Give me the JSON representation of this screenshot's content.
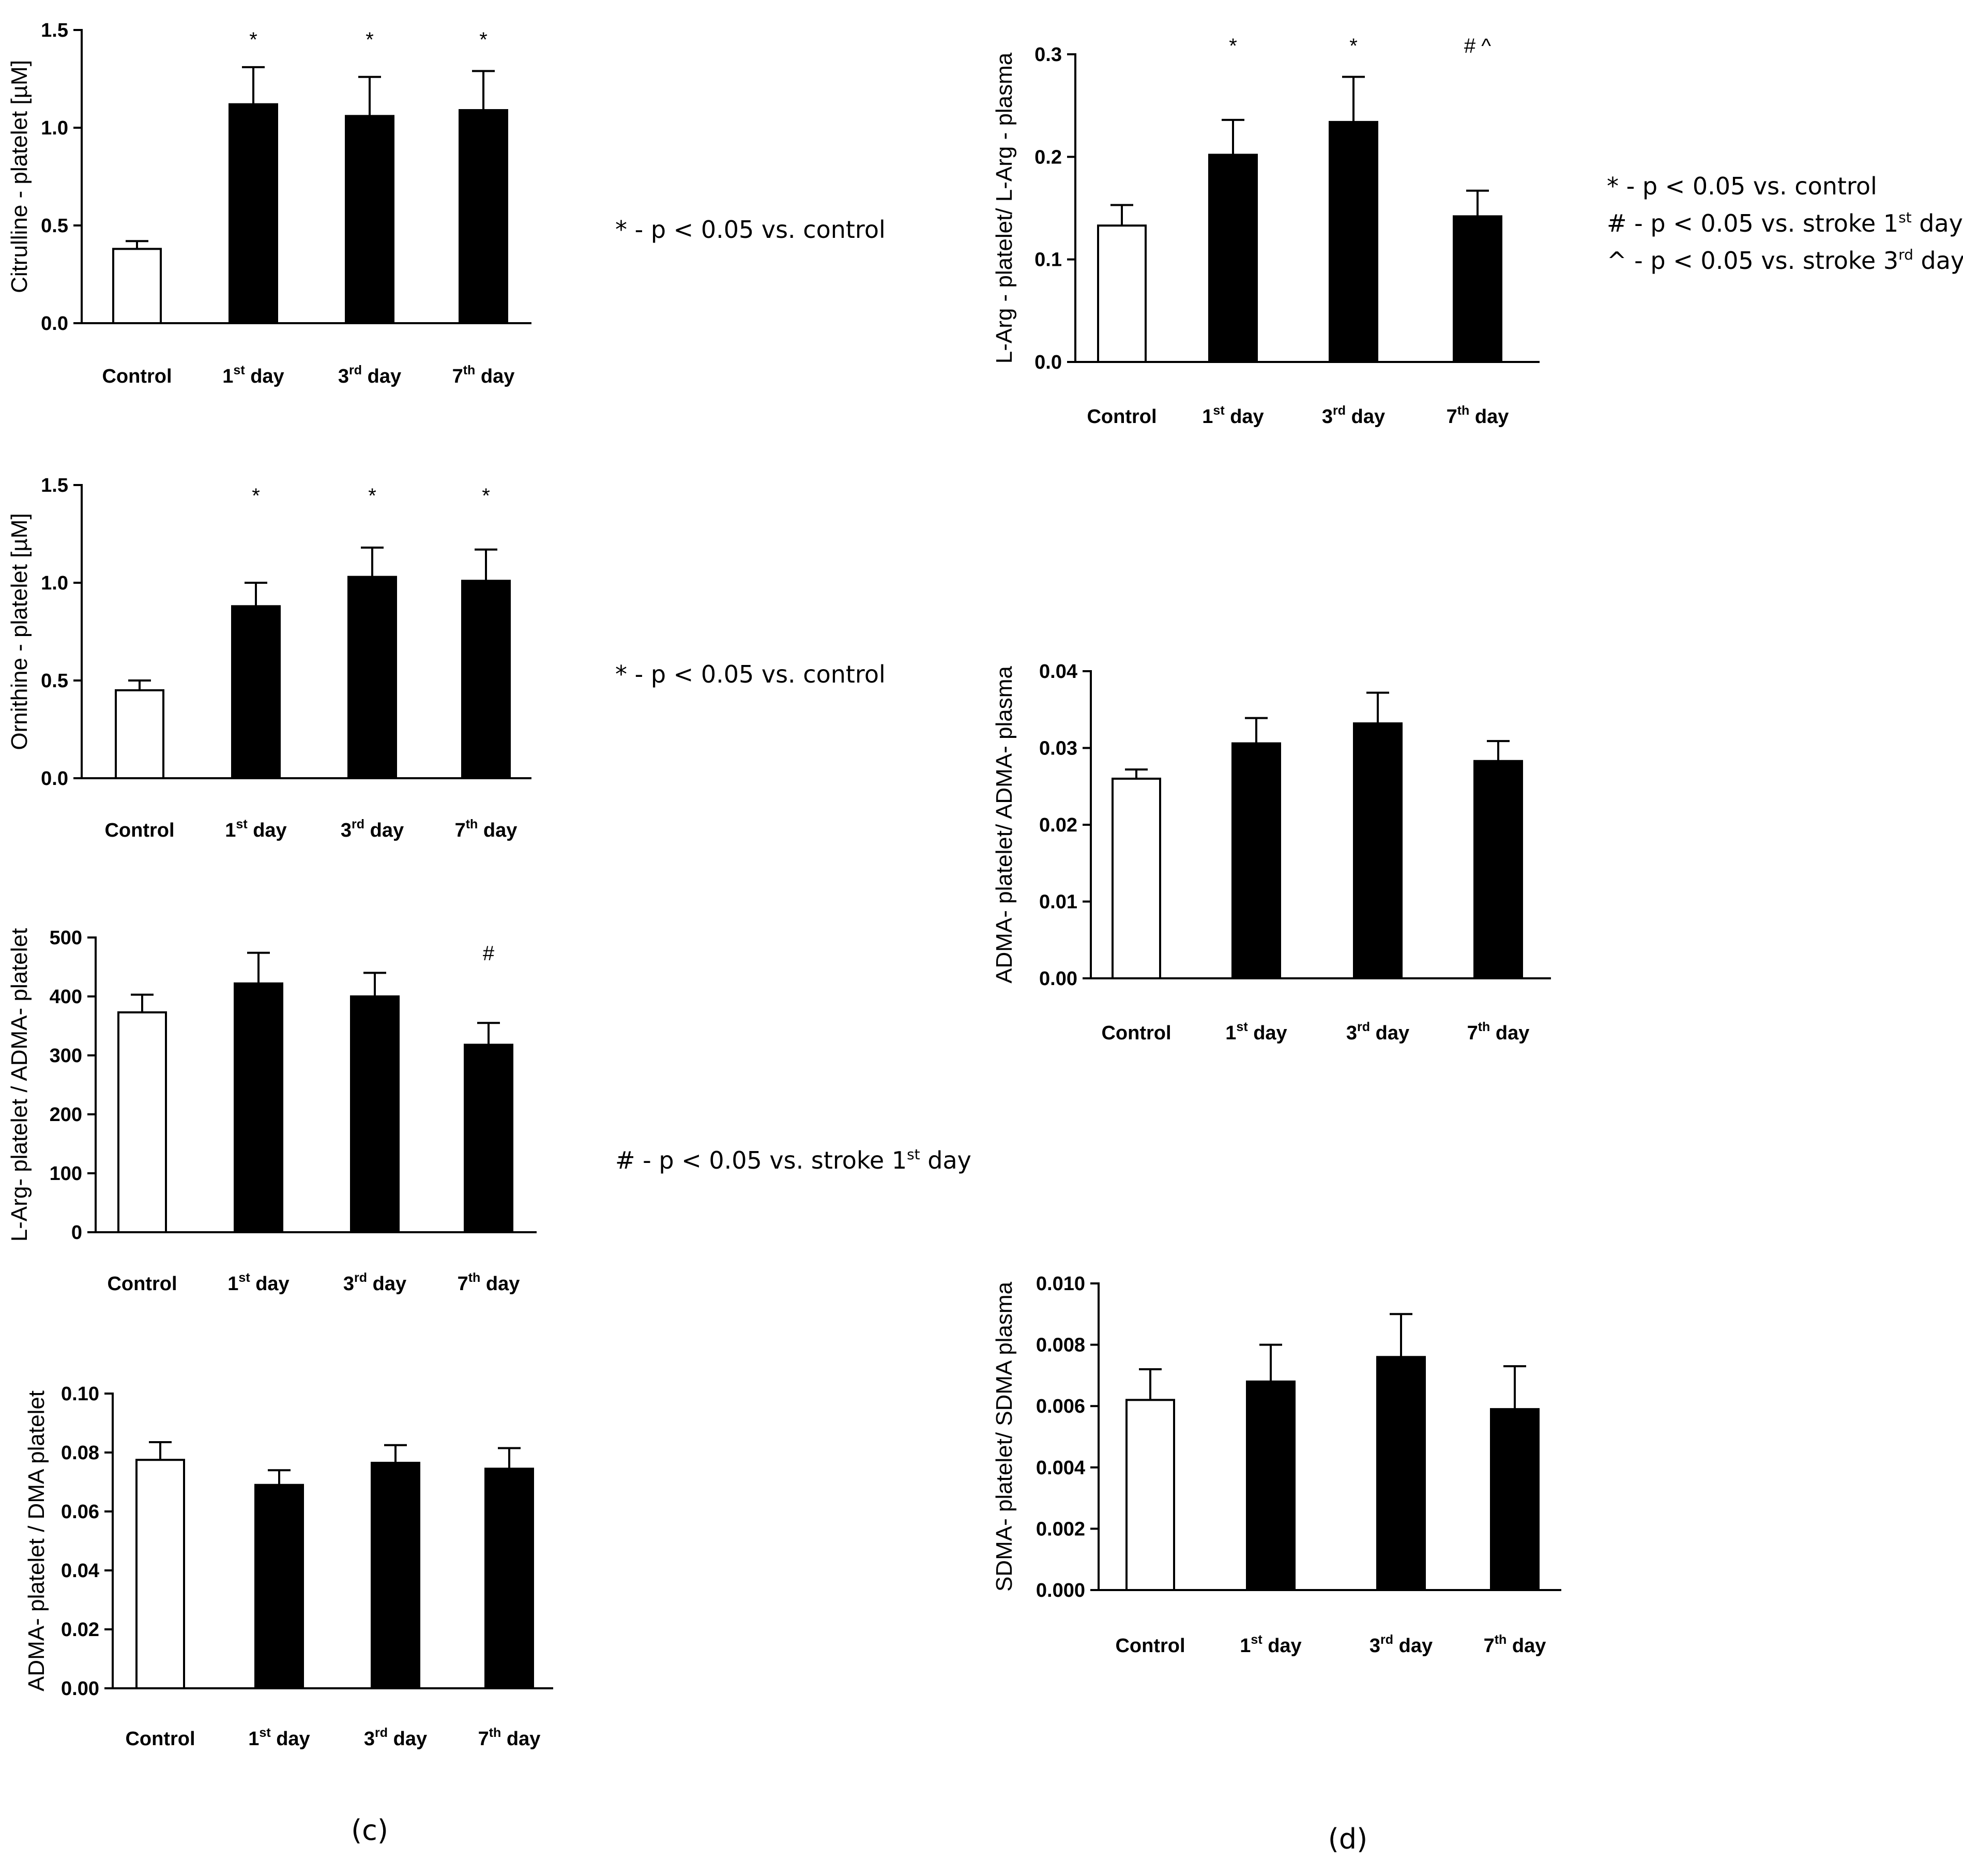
{
  "chart_data": [
    {
      "type": "bar",
      "id": "citrulline-platelet",
      "ylabel": "Citrulline - platelet [µM]",
      "ylim": [
        0,
        1.5
      ],
      "yticks": [
        "0.0",
        "0.5",
        "1.0",
        "1.5"
      ],
      "categories": [
        {
          "main": "Control",
          "sup": "",
          "tail": ""
        },
        {
          "main": "1",
          "sup": "st",
          "tail": " day"
        },
        {
          "main": "3",
          "sup": "rd",
          "tail": " day"
        },
        {
          "main": "7",
          "sup": "th",
          "tail": " day"
        }
      ],
      "values": [
        0.38,
        1.12,
        1.06,
        1.09
      ],
      "errors": [
        0.04,
        0.19,
        0.2,
        0.2
      ],
      "fills": [
        "#ffffff",
        "#000000",
        "#000000",
        "#000000"
      ],
      "significance": [
        "",
        "*",
        "*",
        "*"
      ],
      "note": [
        {
          "text": "* - p < 0.05 vs. control",
          "sup": "",
          "tail": ""
        }
      ]
    },
    {
      "type": "bar",
      "id": "ornithine-platelet",
      "ylabel": "Ornithine - platelet [µM]",
      "ylim": [
        0,
        1.5
      ],
      "yticks": [
        "0.0",
        "0.5",
        "1.0",
        "1.5"
      ],
      "categories": [
        {
          "main": "Control",
          "sup": "",
          "tail": ""
        },
        {
          "main": "1",
          "sup": "st",
          "tail": " day"
        },
        {
          "main": "3",
          "sup": "rd",
          "tail": " day"
        },
        {
          "main": "7",
          "sup": "th",
          "tail": " day"
        }
      ],
      "values": [
        0.45,
        0.88,
        1.03,
        1.01
      ],
      "errors": [
        0.05,
        0.12,
        0.15,
        0.16
      ],
      "fills": [
        "#ffffff",
        "#000000",
        "#000000",
        "#000000"
      ],
      "significance": [
        "",
        "*",
        "*",
        "*"
      ],
      "note": [
        {
          "text": "* - p < 0.05 vs. control",
          "sup": "",
          "tail": ""
        }
      ]
    },
    {
      "type": "bar",
      "id": "larg-adma-platelet",
      "ylabel": "L-Arg- platelet / ADMA- platelet",
      "ylim": [
        0,
        500
      ],
      "yticks": [
        "0",
        "100",
        "200",
        "300",
        "400",
        "500"
      ],
      "categories": [
        {
          "main": "Control",
          "sup": "",
          "tail": ""
        },
        {
          "main": "1",
          "sup": "st",
          "tail": " day"
        },
        {
          "main": "3",
          "sup": "rd",
          "tail": " day"
        },
        {
          "main": "7",
          "sup": "th",
          "tail": " day"
        }
      ],
      "values": [
        373,
        422,
        400,
        318
      ],
      "errors": [
        30,
        52,
        40,
        37
      ],
      "fills": [
        "#ffffff",
        "#000000",
        "#000000",
        "#000000"
      ],
      "significance": [
        "",
        "",
        "",
        "#"
      ],
      "note": [
        {
          "text": "# - p < 0.05 vs. stroke 1",
          "sup": "st",
          "tail": " day"
        }
      ]
    },
    {
      "type": "bar",
      "id": "adma-dma-platelet",
      "ylabel": "ADMA- platelet / DMA platelet",
      "ylim": [
        0,
        0.1
      ],
      "yticks": [
        "0.00",
        "0.02",
        "0.04",
        "0.06",
        "0.08",
        "0.10"
      ],
      "categories": [
        {
          "main": "Control",
          "sup": "",
          "tail": ""
        },
        {
          "main": "1",
          "sup": "st",
          "tail": " day"
        },
        {
          "main": "3",
          "sup": "rd",
          "tail": " day"
        },
        {
          "main": "7",
          "sup": "th",
          "tail": " day"
        }
      ],
      "values": [
        0.0775,
        0.069,
        0.0765,
        0.0745
      ],
      "errors": [
        0.006,
        0.005,
        0.006,
        0.007
      ],
      "fills": [
        "#ffffff",
        "#000000",
        "#000000",
        "#000000"
      ],
      "significance": [
        "",
        "",
        "",
        ""
      ],
      "note": []
    },
    {
      "type": "bar",
      "id": "larg-platelet-plasma",
      "ylabel": "L-Arg - platelet/ L-Arg - plasma",
      "ylim": [
        0,
        0.3
      ],
      "yticks": [
        "0.0",
        "0.1",
        "0.2",
        "0.3"
      ],
      "categories": [
        {
          "main": "Control",
          "sup": "",
          "tail": ""
        },
        {
          "main": "1",
          "sup": "st",
          "tail": " day"
        },
        {
          "main": "3",
          "sup": "rd",
          "tail": " day"
        },
        {
          "main": "7",
          "sup": "th",
          "tail": " day"
        }
      ],
      "values": [
        0.133,
        0.202,
        0.234,
        0.142
      ],
      "errors": [
        0.02,
        0.034,
        0.044,
        0.025
      ],
      "fills": [
        "#ffffff",
        "#000000",
        "#000000",
        "#000000"
      ],
      "significance": [
        "",
        "*",
        "*",
        "# ^"
      ],
      "note": [
        {
          "text": "* - p < 0.05 vs. control",
          "sup": "",
          "tail": ""
        },
        {
          "text": "# - p < 0.05 vs. stroke 1",
          "sup": "st",
          "tail": " day"
        },
        {
          "text": "^ - p < 0.05 vs. stroke 3",
          "sup": "rd",
          "tail": " day"
        }
      ]
    },
    {
      "type": "bar",
      "id": "adma-platelet-plasma",
      "ylabel": "ADMA- platelet/ ADMA- plasma",
      "ylim": [
        0,
        0.04
      ],
      "yticks": [
        "0.00",
        "0.01",
        "0.02",
        "0.03",
        "0.04"
      ],
      "categories": [
        {
          "main": "Control",
          "sup": "",
          "tail": ""
        },
        {
          "main": "1",
          "sup": "st",
          "tail": " day"
        },
        {
          "main": "3",
          "sup": "rd",
          "tail": " day"
        },
        {
          "main": "7",
          "sup": "th",
          "tail": " day"
        }
      ],
      "values": [
        0.026,
        0.0306,
        0.0332,
        0.0283
      ],
      "errors": [
        0.0012,
        0.0033,
        0.004,
        0.0026
      ],
      "fills": [
        "#ffffff",
        "#000000",
        "#000000",
        "#000000"
      ],
      "significance": [
        "",
        "",
        "",
        ""
      ],
      "note": []
    },
    {
      "type": "bar",
      "id": "sdma-platelet-plasma",
      "ylabel": "SDMA- platelet/ SDMA plasma",
      "ylim": [
        0,
        0.01
      ],
      "yticks": [
        "0.000",
        "0.002",
        "0.004",
        "0.006",
        "0.008",
        "0.010"
      ],
      "categories": [
        {
          "main": "Control",
          "sup": "",
          "tail": ""
        },
        {
          "main": "1",
          "sup": "st",
          "tail": " day"
        },
        {
          "main": "3",
          "sup": "rd",
          "tail": " day"
        },
        {
          "main": "7",
          "sup": "th",
          "tail": " day"
        }
      ],
      "values": [
        0.0062,
        0.0068,
        0.0076,
        0.0059
      ],
      "errors": [
        0.001,
        0.0012,
        0.0014,
        0.0014
      ],
      "fills": [
        "#ffffff",
        "#000000",
        "#000000",
        "#000000"
      ],
      "significance": [
        "",
        "",
        "",
        ""
      ],
      "note": []
    }
  ],
  "panel_labels": [
    "(c)",
    "(d)"
  ]
}
